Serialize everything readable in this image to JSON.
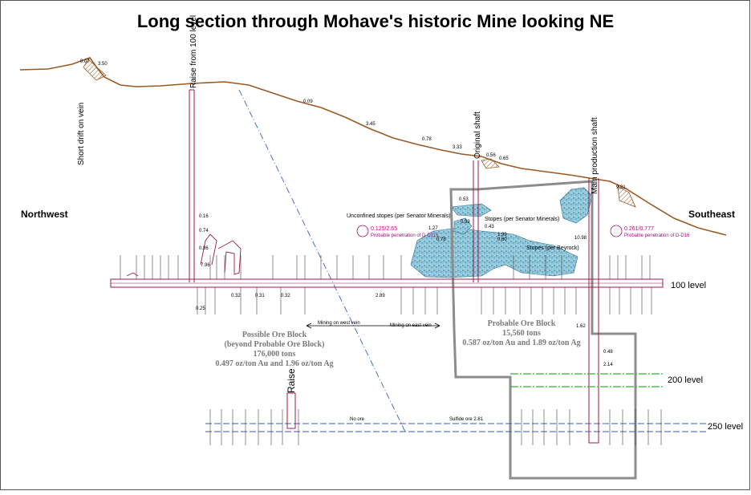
{
  "title": "Long section through Mohave's historic Mine looking NE",
  "directions": {
    "left": "Northwest",
    "right": "Southeast"
  },
  "levels": {
    "l100": "100 level",
    "l200": "200 level",
    "l250": "250 level"
  },
  "workings": {
    "short_drift": "Short drift on vein",
    "raise_100": "Raise from 100 level",
    "original_shaft": "Original shaft",
    "main_shaft": "Main production shaft",
    "raise": "Raise"
  },
  "stopes": {
    "unconfined": "Unconfined stopes (per Senator Minerals)",
    "senator": "Stopes (per Senator Minerals)",
    "beyrock": "Stopes (per Beyrock)"
  },
  "mining_notes": {
    "west_vein": "Mining on west vein",
    "east_vein": "Mining on east vein",
    "no_ore": "No ore",
    "sulfide": "Sulfide ore 2.81"
  },
  "possible_block": {
    "line1": "Possible Ore Block",
    "line2": "(beyond Probable Ore Block)",
    "line3": "176,000 tons",
    "line4": "0.497 oz/ton Au and 1.96 oz/ton Ag"
  },
  "probable_block": {
    "line1": "Probable Ore Block",
    "line2": "15,560 tons",
    "line3": "0.587 oz/ton Au and 1.89 oz/ton Ag"
  },
  "drill_notes": {
    "left_value": "0.125/2.65",
    "left_caption": "Probable penetration of D-D115",
    "right_value": "0.261/0.777",
    "right_caption": "Probable penetration of D-D16"
  },
  "surface_values": [
    "0.07",
    "3.50",
    "0.09",
    "3.45",
    "0.78",
    "3.33",
    "0.56",
    "0.65",
    "9.21"
  ],
  "drift_values": [
    "0.16",
    "0.74",
    "0.86",
    "7.96",
    "1.27",
    "0.43",
    "0.53",
    "0.78",
    "0.93",
    "0.60",
    "1.99",
    "10.98",
    "0.48",
    "2.14",
    "1.62",
    "0.25",
    "0.32",
    "0.31",
    "0.32",
    "2.89"
  ],
  "colors": {
    "surface": "#9a5a24",
    "workings": "#9b1b4a",
    "stope_fill": "#8ec6da",
    "block_outline": "#8c8c8c",
    "level_200": "#2fb52f",
    "level_250": "#3a5bb5",
    "assay_text": "#a0127a"
  }
}
